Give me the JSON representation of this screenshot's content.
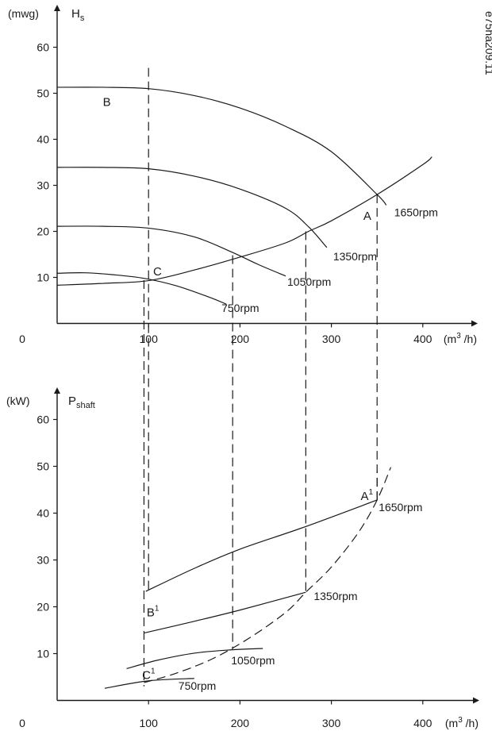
{
  "figure_id": "e75ha209.11",
  "chart_data": [
    {
      "type": "line",
      "y_unit": "(mwg)",
      "y_symbol": "H",
      "y_symbol_sub": "s",
      "x_unit_prefix": "(m",
      "x_unit_exp": "3",
      "x_unit_suffix": " /h)",
      "xlim": [
        0,
        450
      ],
      "ylim": [
        0,
        68
      ],
      "x_ticks": [
        "0",
        "100",
        "200",
        "300",
        "400"
      ],
      "y_ticks": [
        "10",
        "20",
        "30",
        "40",
        "50",
        "60"
      ],
      "series": [
        {
          "name": "1650rpm",
          "points": [
            [
              0,
              51.3
            ],
            [
              50,
              51.3
            ],
            [
              100,
              51.0
            ],
            [
              150,
              49.5
            ],
            [
              200,
              46.8
            ],
            [
              250,
              42.8
            ],
            [
              300,
              37.3
            ],
            [
              350,
              28.0
            ],
            [
              360,
              25.7
            ]
          ]
        },
        {
          "name": "1350rpm",
          "points": [
            [
              0,
              33.9
            ],
            [
              50,
              33.9
            ],
            [
              100,
              33.6
            ],
            [
              150,
              32.0
            ],
            [
              200,
              29.2
            ],
            [
              250,
              25.0
            ],
            [
              275,
              21.0
            ],
            [
              295,
              16.5
            ]
          ]
        },
        {
          "name": "1050rpm",
          "points": [
            [
              0,
              21.1
            ],
            [
              50,
              21.1
            ],
            [
              100,
              20.7
            ],
            [
              150,
              18.8
            ],
            [
              190,
              15.6
            ],
            [
              220,
              12.8
            ],
            [
              250,
              10.3
            ]
          ]
        },
        {
          "name": "750rpm",
          "points": [
            [
              0,
              10.9
            ],
            [
              30,
              11.0
            ],
            [
              60,
              10.6
            ],
            [
              95,
              9.8
            ],
            [
              130,
              8.2
            ],
            [
              165,
              5.8
            ],
            [
              185,
              4.2
            ]
          ]
        }
      ],
      "system_curve": [
        [
          0,
          8.3
        ],
        [
          50,
          8.7
        ],
        [
          100,
          9.3
        ],
        [
          150,
          11.6
        ],
        [
          200,
          14.4
        ],
        [
          250,
          17.5
        ],
        [
          275,
          20.0
        ],
        [
          300,
          22.3
        ],
        [
          350,
          28.0
        ],
        [
          400,
          34.5
        ],
        [
          410,
          36.2
        ]
      ],
      "operating_lines_x": [
        100,
        192,
        272,
        350
      ],
      "dashed_stub_x": [
        95
      ],
      "points": [
        {
          "label": "A",
          "sup": "",
          "x": 335,
          "y": 22.5
        },
        {
          "label": "B",
          "sup": "",
          "x": 50,
          "y": 47.2
        },
        {
          "label": "C",
          "sup": "",
          "x": 105,
          "y": 10.4
        }
      ]
    },
    {
      "type": "line",
      "y_unit": "(kW)",
      "y_symbol": "P",
      "y_symbol_sub": "shaft",
      "x_unit_prefix": "(m",
      "x_unit_exp": "3",
      "x_unit_suffix": " /h)",
      "xlim": [
        0,
        450
      ],
      "ylim": [
        0,
        68
      ],
      "x_ticks": [
        "0",
        "100",
        "200",
        "300",
        "400"
      ],
      "y_ticks": [
        "10",
        "20",
        "30",
        "40",
        "50",
        "60"
      ],
      "series": [
        {
          "name": "1650rpm",
          "points": [
            [
              97,
              23.3
            ],
            [
              150,
              28.2
            ],
            [
              200,
              32.3
            ],
            [
              270,
              37.0
            ],
            [
              350,
              42.8
            ]
          ]
        },
        {
          "name": "1350rpm",
          "points": [
            [
              95,
              14.4
            ],
            [
              150,
              16.9
            ],
            [
              200,
              19.3
            ],
            [
              272,
              23.1
            ]
          ]
        },
        {
          "name": "1050rpm",
          "points": [
            [
              76,
              6.8
            ],
            [
              110,
              8.6
            ],
            [
              150,
              10.1
            ],
            [
              190,
              10.8
            ],
            [
              225,
              11.1
            ]
          ]
        },
        {
          "name": "750rpm",
          "points": [
            [
              52,
              2.6
            ],
            [
              100,
              4.2
            ],
            [
              150,
              4.7
            ]
          ]
        }
      ],
      "power_curve": [
        [
          95,
          3.8
        ],
        [
          130,
          5.8
        ],
        [
          170,
          8.9
        ],
        [
          210,
          13.3
        ],
        [
          250,
          18.8
        ],
        [
          272,
          23.1
        ],
        [
          300,
          28.5
        ],
        [
          330,
          36.0
        ],
        [
          350,
          42.8
        ],
        [
          365,
          49.8
        ]
      ],
      "operating_lines_x": [
        95,
        100,
        192,
        272,
        350
      ],
      "points": [
        {
          "label": "A",
          "sup": "1",
          "x": 332,
          "y": 42.8
        },
        {
          "label": "B",
          "sup": "1",
          "x": 98,
          "y": 18.0
        },
        {
          "label": "C",
          "sup": "1",
          "x": 93,
          "y": 4.6
        }
      ]
    }
  ]
}
